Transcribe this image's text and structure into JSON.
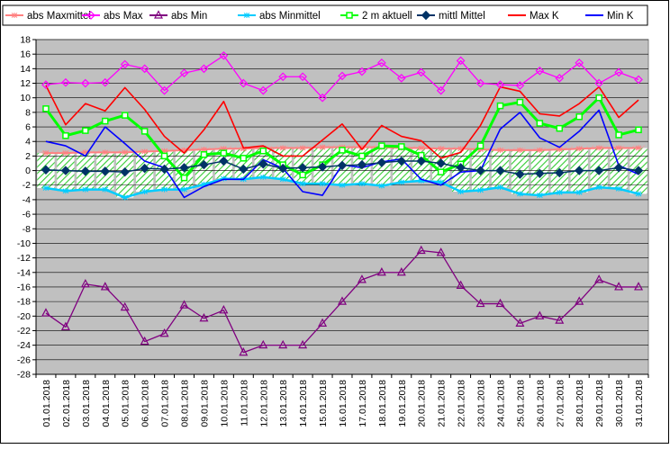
{
  "chart_data": {
    "type": "line",
    "title": "",
    "xlabel": "",
    "ylabel": "",
    "ylim": [
      -28,
      18
    ],
    "y_ticks": [
      18,
      16,
      14,
      12,
      10,
      8,
      6,
      4,
      2,
      0,
      -2,
      -4,
      -6,
      -8,
      -10,
      -12,
      -14,
      -16,
      -18,
      -20,
      -22,
      -24,
      -26,
      -28
    ],
    "grid": true,
    "legend_position": "top",
    "categories": [
      "01.01.2018",
      "02.01.2018",
      "03.01.2018",
      "04.01.2018",
      "05.01.2018",
      "06.01.2018",
      "07.01.2018",
      "08.01.2018",
      "09.01.2018",
      "10.01.2018",
      "11.01.2018",
      "12.01.2018",
      "13.01.2018",
      "14.01.2018",
      "15.01.2018",
      "16.01.2018",
      "17.01.2018",
      "18.01.2018",
      "19.01.2018",
      "20.01.2018",
      "21.01.2018",
      "22.01.2018",
      "23.01.2018",
      "24.01.2018",
      "25.01.2018",
      "26.01.2018",
      "27.01.2018",
      "28.01.2018",
      "29.01.2018",
      "30.01.2018",
      "31.01.2018"
    ],
    "series": [
      {
        "name": "abs Maxmittel",
        "color": "#ff8080",
        "marker": "star",
        "values": [
          2.4,
          2.4,
          2.5,
          2.5,
          2.5,
          2.6,
          2.7,
          2.8,
          2.9,
          3.0,
          3.0,
          3.1,
          3.1,
          3.1,
          3.2,
          3.2,
          3.2,
          3.2,
          3.1,
          3.1,
          3.0,
          3.0,
          2.9,
          2.8,
          2.8,
          2.8,
          2.9,
          3.0,
          3.1,
          3.1,
          3.1
        ]
      },
      {
        "name": "abs Max",
        "color": "#ff00ff",
        "marker": "diamond-open",
        "values": [
          11.8,
          12.1,
          12.0,
          12.1,
          14.6,
          14.0,
          11.0,
          13.4,
          14.0,
          15.8,
          12.0,
          11.0,
          12.9,
          12.9,
          10.0,
          13.0,
          13.6,
          14.8,
          12.7,
          13.5,
          11.0,
          15.1,
          12.0,
          11.8,
          11.7,
          13.7,
          12.7,
          14.8,
          12.0,
          13.5,
          12.5
        ]
      },
      {
        "name": "abs Min",
        "color": "#800080",
        "marker": "triangle-open",
        "values": [
          -19.6,
          -21.5,
          -15.6,
          -16.0,
          -18.8,
          -23.5,
          -22.4,
          -18.5,
          -20.3,
          -19.2,
          -25.0,
          -24.0,
          -24.0,
          -24.0,
          -21.0,
          -18.0,
          -15.0,
          -14.0,
          -14.0,
          -11.0,
          -11.3,
          -15.8,
          -18.3,
          -18.3,
          -21.0,
          -20.0,
          -20.6,
          -18.0,
          -15.0,
          -16.0,
          -16.0
        ]
      },
      {
        "name": "abs Minmittel",
        "color": "#00ccff",
        "marker": "star",
        "values": [
          -2.4,
          -2.8,
          -2.6,
          -2.6,
          -3.7,
          -2.9,
          -2.6,
          -2.6,
          -1.9,
          -1.1,
          -1.2,
          -0.9,
          -1.2,
          -1.8,
          -1.8,
          -2.0,
          -1.8,
          -2.1,
          -1.6,
          -1.4,
          -1.6,
          -2.9,
          -2.7,
          -2.3,
          -3.2,
          -3.4,
          -3.0,
          -3.0,
          -2.3,
          -2.5,
          -3.2
        ]
      },
      {
        "name": "2 m aktuell",
        "color": "#00ff00",
        "marker": "square-open",
        "values": [
          8.5,
          4.8,
          5.5,
          6.8,
          7.6,
          5.4,
          2.0,
          -1.0,
          2.2,
          2.4,
          1.7,
          2.7,
          0.8,
          -0.6,
          0.8,
          2.8,
          2.0,
          3.4,
          3.3,
          2.1,
          -0.2,
          0.9,
          3.4,
          8.9,
          9.4,
          6.5,
          5.8,
          7.4,
          10.0,
          4.9,
          5.6
        ]
      },
      {
        "name": "mittl Mittel",
        "color": "#003366",
        "marker": "diamond",
        "values": [
          0.1,
          0.0,
          -0.1,
          -0.1,
          -0.2,
          0.3,
          0.2,
          0.4,
          0.8,
          1.3,
          0.2,
          0.9,
          0.3,
          0.4,
          0.5,
          0.7,
          0.8,
          1.1,
          1.3,
          1.3,
          1.0,
          0.4,
          0.0,
          0.0,
          -0.5,
          -0.4,
          -0.3,
          0.0,
          0.0,
          0.4,
          0.0
        ]
      },
      {
        "name": "Max K",
        "color": "#ff0000",
        "marker": "none",
        "values": [
          11.7,
          6.3,
          9.2,
          8.2,
          11.4,
          8.4,
          4.7,
          2.4,
          5.6,
          9.5,
          3.1,
          3.4,
          2.0,
          2.0,
          4.2,
          6.4,
          2.9,
          6.2,
          4.7,
          4.1,
          1.7,
          2.5,
          6.2,
          11.5,
          10.9,
          7.8,
          7.5,
          9.2,
          11.5,
          7.3,
          9.7
        ]
      },
      {
        "name": "Min K",
        "color": "#0000ff",
        "marker": "none",
        "values": [
          4.0,
          3.4,
          2.0,
          6.0,
          3.7,
          1.3,
          0.4,
          -3.7,
          -2.2,
          -1.2,
          -1.2,
          1.5,
          0.3,
          -2.9,
          -3.4,
          0.8,
          0.4,
          1.2,
          1.6,
          -1.2,
          -2.0,
          -0.2,
          0.0,
          5.7,
          8.0,
          4.5,
          3.2,
          5.4,
          8.3,
          0.7,
          -0.5
        ]
      }
    ]
  }
}
